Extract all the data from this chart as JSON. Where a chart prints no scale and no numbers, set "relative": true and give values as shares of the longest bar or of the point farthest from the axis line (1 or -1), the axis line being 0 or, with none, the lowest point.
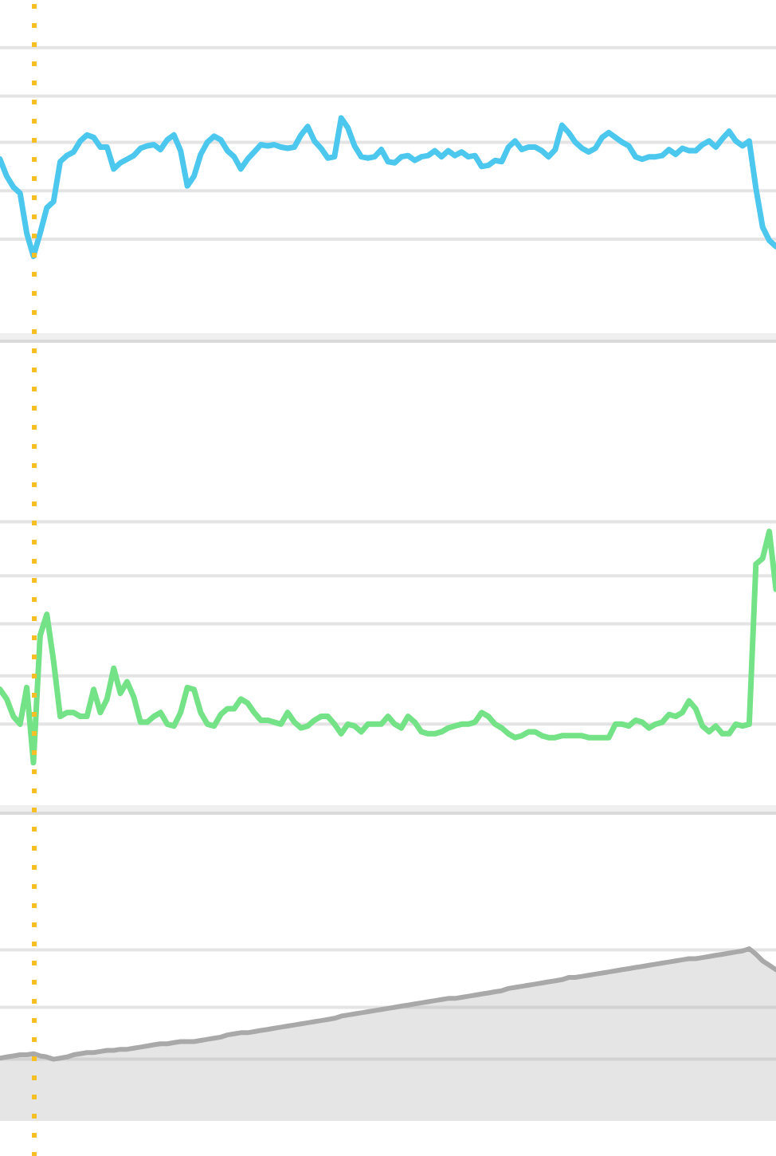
{
  "chart_data": [
    {
      "type": "line",
      "relative": true,
      "marker": "none",
      "categories": [
        null,
        null,
        null,
        null,
        null,
        null,
        null,
        null,
        null,
        null,
        null,
        null,
        null,
        null,
        null,
        null,
        null,
        null,
        null,
        null,
        null,
        null,
        null,
        null,
        null,
        null,
        null,
        null,
        null,
        null,
        null,
        null,
        null,
        null,
        null,
        null,
        null,
        null,
        null,
        null,
        null,
        null,
        null,
        null,
        null,
        null,
        null,
        null,
        null,
        null,
        null,
        null,
        null,
        null,
        null,
        null,
        null,
        null,
        null,
        null,
        null,
        null,
        null,
        null,
        null,
        null,
        null,
        null,
        null,
        null,
        null,
        null,
        null,
        null,
        null,
        null,
        null,
        null,
        null,
        null,
        null,
        null,
        null,
        null,
        null,
        null,
        null,
        null,
        null,
        null,
        null,
        null,
        null,
        null,
        null,
        null,
        null,
        null,
        null,
        null,
        null,
        null,
        null,
        null,
        null,
        null,
        null,
        null,
        null,
        null,
        null,
        null,
        null,
        null,
        null,
        null,
        null
      ],
      "series": [
        {
          "color": "#4cc7ee",
          "values": [
            0.66,
            0.52,
            0.43,
            0.38,
            0.05,
            -0.14,
            0.05,
            0.26,
            0.31,
            0.64,
            0.69,
            0.72,
            0.81,
            0.86,
            0.84,
            0.76,
            0.76,
            0.58,
            0.63,
            0.66,
            0.69,
            0.75,
            0.77,
            0.78,
            0.74,
            0.82,
            0.86,
            0.73,
            0.44,
            0.52,
            0.7,
            0.8,
            0.85,
            0.82,
            0.73,
            0.68,
            0.58,
            0.66,
            0.72,
            0.78,
            0.77,
            0.78,
            0.76,
            0.75,
            0.76,
            0.86,
            0.93,
            0.81,
            0.75,
            0.67,
            0.68,
            1,
            0.92,
            0.77,
            0.68,
            0.67,
            0.68,
            0.74,
            0.64,
            0.63,
            0.68,
            0.69,
            0.65,
            0.68,
            0.69,
            0.73,
            0.68,
            0.73,
            0.69,
            0.72,
            0.68,
            0.69,
            0.6,
            0.61,
            0.65,
            0.64,
            0.76,
            0.81,
            0.74,
            0.76,
            0.76,
            0.73,
            0.68,
            0.74,
            0.94,
            0.88,
            0.8,
            0.75,
            0.72,
            0.75,
            0.84,
            0.88,
            0.84,
            0.8,
            0.77,
            0.68,
            0.66,
            0.68,
            0.68,
            0.69,
            0.74,
            0.7,
            0.75,
            0.73,
            0.73,
            0.78,
            0.81,
            0.76,
            0.83,
            0.89,
            0.81,
            0.77,
            0.81,
            0.42,
            0.1,
            -0.01,
            -0.06
          ]
        }
      ],
      "ref_lines": [
        {
          "axis": "y",
          "value": 0,
          "color": "#e4e4e4"
        },
        {
          "axis": "y",
          "value": 0.4,
          "color": "#e4e4e4"
        },
        {
          "axis": "y",
          "value": 0.8,
          "color": "#e4e4e4"
        },
        {
          "axis": "y",
          "value": 1.18,
          "color": "#e4e4e4"
        },
        {
          "axis": "y",
          "value": 1.58,
          "color": "#e4e4e4"
        }
      ]
    },
    {
      "type": "line",
      "relative": true,
      "marker": "none",
      "categories": [
        null,
        null,
        null,
        null,
        null,
        null,
        null,
        null,
        null,
        null,
        null,
        null,
        null,
        null,
        null,
        null,
        null,
        null,
        null,
        null,
        null,
        null,
        null,
        null,
        null,
        null,
        null,
        null,
        null,
        null,
        null,
        null,
        null,
        null,
        null,
        null,
        null,
        null,
        null,
        null,
        null,
        null,
        null,
        null,
        null,
        null,
        null,
        null,
        null,
        null,
        null,
        null,
        null,
        null,
        null,
        null,
        null,
        null,
        null,
        null,
        null,
        null,
        null,
        null,
        null,
        null,
        null,
        null,
        null,
        null,
        null,
        null,
        null,
        null,
        null,
        null,
        null,
        null,
        null,
        null,
        null,
        null,
        null,
        null,
        null,
        null,
        null,
        null,
        null,
        null,
        null,
        null,
        null,
        null,
        null,
        null,
        null,
        null,
        null,
        null,
        null,
        null,
        null,
        null,
        null,
        null,
        null,
        null,
        null,
        null,
        null,
        null,
        null,
        null,
        null,
        null,
        null
      ],
      "series": [
        {
          "color": "#74e286",
          "values": [
            0.18,
            0.13,
            0.04,
            0,
            0.19,
            -0.2,
            0.46,
            0.57,
            0.33,
            0.04,
            0.06,
            0.06,
            0.04,
            0.04,
            0.18,
            0.06,
            0.13,
            0.29,
            0.16,
            0.22,
            0.14,
            0.01,
            0.01,
            0.04,
            0.06,
            0,
            -0.01,
            0.06,
            0.19,
            0.18,
            0.06,
            0,
            -0.01,
            0.05,
            0.08,
            0.08,
            0.13,
            0.11,
            0.06,
            0.02,
            0.02,
            0.01,
            0,
            0.06,
            0.01,
            -0.02,
            -0.01,
            0.02,
            0.04,
            0.04,
            0,
            -0.05,
            0,
            -0.01,
            -0.04,
            0,
            0,
            0,
            0.04,
            0,
            -0.02,
            0.04,
            0.01,
            -0.04,
            -0.05,
            -0.05,
            -0.04,
            -0.02,
            -0.01,
            0,
            0,
            0.01,
            0.06,
            0.04,
            0,
            -0.02,
            -0.05,
            -0.07,
            -0.06,
            -0.04,
            -0.04,
            -0.06,
            -0.07,
            -0.07,
            -0.06,
            -0.06,
            -0.06,
            -0.06,
            -0.07,
            -0.07,
            -0.07,
            -0.07,
            0,
            0,
            -0.01,
            0.02,
            0.01,
            -0.02,
            0,
            0.01,
            0.05,
            0.04,
            0.06,
            0.12,
            0.08,
            -0.01,
            -0.04,
            -0.01,
            -0.05,
            -0.05,
            0,
            -0.01,
            0,
            0.83,
            0.86,
            1,
            0.7
          ]
        }
      ],
      "ref_lines": [
        {
          "axis": "y",
          "value": 0,
          "color": "#e4e4e4"
        },
        {
          "axis": "y",
          "value": 0.25,
          "color": "#e4e4e4"
        },
        {
          "axis": "y",
          "value": 0.52,
          "color": "#e4e4e4"
        },
        {
          "axis": "y",
          "value": 0.77,
          "color": "#e4e4e4"
        },
        {
          "axis": "y",
          "value": 1.05,
          "color": "#e4e4e4"
        }
      ]
    },
    {
      "type": "area",
      "relative": true,
      "marker": "none",
      "categories": [
        null,
        null,
        null,
        null,
        null,
        null,
        null,
        null,
        null,
        null,
        null,
        null,
        null,
        null,
        null,
        null,
        null,
        null,
        null,
        null,
        null,
        null,
        null,
        null,
        null,
        null,
        null,
        null,
        null,
        null,
        null,
        null,
        null,
        null,
        null,
        null,
        null,
        null,
        null,
        null,
        null,
        null,
        null,
        null,
        null,
        null,
        null,
        null,
        null,
        null,
        null,
        null,
        null,
        null,
        null,
        null,
        null,
        null,
        null,
        null,
        null,
        null,
        null,
        null,
        null,
        null,
        null,
        null,
        null,
        null,
        null,
        null,
        null,
        null,
        null,
        null,
        null,
        null,
        null,
        null,
        null,
        null,
        null,
        null,
        null,
        null,
        null,
        null,
        null,
        null,
        null,
        null,
        null,
        null,
        null,
        null,
        null,
        null,
        null,
        null,
        null,
        null,
        null,
        null,
        null,
        null,
        null,
        null,
        null,
        null,
        null,
        null,
        null,
        null,
        null,
        null,
        null
      ],
      "series": [
        {
          "color": "#a9a9a9",
          "values": [
            0.01,
            0.02,
            0.03,
            0.04,
            0.04,
            0.05,
            0.03,
            0.02,
            0,
            0.01,
            0.02,
            0.04,
            0.05,
            0.06,
            0.06,
            0.07,
            0.08,
            0.08,
            0.09,
            0.09,
            0.1,
            0.11,
            0.12,
            0.13,
            0.14,
            0.14,
            0.15,
            0.16,
            0.16,
            0.16,
            0.17,
            0.18,
            0.19,
            0.2,
            0.22,
            0.23,
            0.24,
            0.24,
            0.25,
            0.26,
            0.27,
            0.28,
            0.29,
            0.3,
            0.31,
            0.32,
            0.33,
            0.34,
            0.35,
            0.36,
            0.37,
            0.39,
            0.4,
            0.41,
            0.42,
            0.43,
            0.44,
            0.45,
            0.46,
            0.47,
            0.48,
            0.49,
            0.5,
            0.51,
            0.52,
            0.53,
            0.54,
            0.55,
            0.55,
            0.56,
            0.57,
            0.58,
            0.59,
            0.6,
            0.61,
            0.62,
            0.64,
            0.65,
            0.66,
            0.67,
            0.68,
            0.69,
            0.7,
            0.71,
            0.72,
            0.74,
            0.74,
            0.75,
            0.76,
            0.77,
            0.78,
            0.79,
            0.8,
            0.81,
            0.82,
            0.83,
            0.84,
            0.85,
            0.86,
            0.87,
            0.88,
            0.89,
            0.9,
            0.91,
            0.91,
            0.92,
            0.93,
            0.94,
            0.95,
            0.96,
            0.97,
            0.98,
            1,
            0.95,
            0.89,
            0.85,
            0.81
          ]
        }
      ],
      "ref_lines": [
        {
          "axis": "y",
          "value": 0,
          "color": "#e4e4e4"
        },
        {
          "axis": "y",
          "value": 0.47,
          "color": "#e4e4e4"
        },
        {
          "axis": "y",
          "value": 0.99,
          "color": "#e4e4e4"
        }
      ]
    }
  ]
}
